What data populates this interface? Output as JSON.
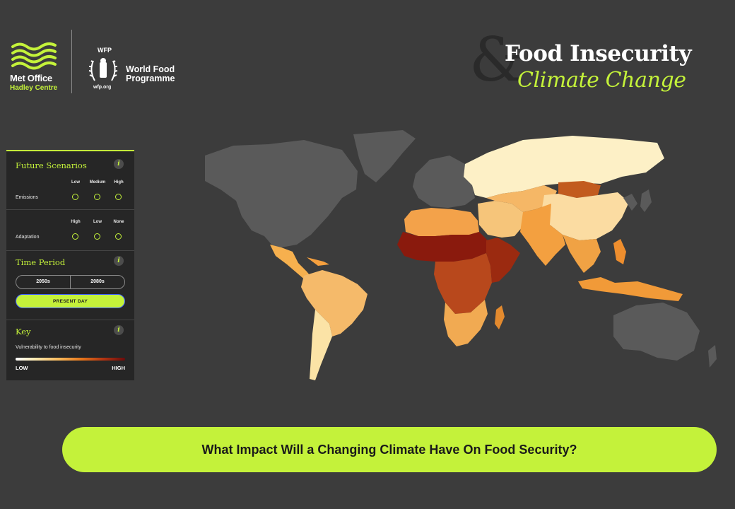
{
  "header": {
    "met_office": {
      "name": "Met Office",
      "subtitle": "Hadley Centre",
      "icon": "wave-lines-icon",
      "accent": "#c4f23a"
    },
    "wfp": {
      "acronym": "WFP",
      "name_line1": "World Food",
      "name_line2": "Programme",
      "url": "wfp.org",
      "icon": "wheat-wreath-emblem-icon"
    },
    "title": {
      "ampersand": "&",
      "line1": "Food Insecurity",
      "line2": "Climate Change"
    }
  },
  "panel": {
    "future_scenarios": {
      "title": "Future Scenarios",
      "info": "i",
      "emissions": {
        "label": "Emissions",
        "options": [
          "Low",
          "Medium",
          "High"
        ]
      },
      "adaptation": {
        "label": "Adaptation",
        "options": [
          "High",
          "Low",
          "None"
        ]
      }
    },
    "time_period": {
      "title": "Time Period",
      "info": "i",
      "options": [
        "2050s",
        "2080s"
      ],
      "present_label": "PRESENT DAY"
    },
    "key": {
      "title": "Key",
      "info": "i",
      "description": "Vulnerability to food insecurity",
      "low": "LOW",
      "high": "HIGH",
      "gradient": [
        "#ffffff",
        "#fde9b0",
        "#f8b85a",
        "#e5761c",
        "#b23512",
        "#6a0b0b"
      ]
    }
  },
  "map": {
    "no_data_color": "#5a5a5a",
    "ocean_color": "#3c3c3c",
    "regions": [
      {
        "name": "North America",
        "level": "no-data"
      },
      {
        "name": "Greenland",
        "level": "no-data"
      },
      {
        "name": "Europe",
        "level": "no-data"
      },
      {
        "name": "Australia",
        "level": "no-data"
      },
      {
        "name": "Russia",
        "level": "low"
      },
      {
        "name": "Central America",
        "level": "medium"
      },
      {
        "name": "South America",
        "level": "low-medium"
      },
      {
        "name": "Southern Cone",
        "level": "low"
      },
      {
        "name": "North Africa",
        "level": "medium"
      },
      {
        "name": "Sahel",
        "level": "high"
      },
      {
        "name": "Central Africa",
        "level": "high"
      },
      {
        "name": "East Africa",
        "level": "high"
      },
      {
        "name": "Southern Africa",
        "level": "medium"
      },
      {
        "name": "Middle East",
        "level": "low-medium"
      },
      {
        "name": "Central Asia",
        "level": "low-medium"
      },
      {
        "name": "Mongolia",
        "level": "medium-high"
      },
      {
        "name": "China",
        "level": "low"
      },
      {
        "name": "South Asia",
        "level": "medium"
      },
      {
        "name": "Southeast Asia",
        "level": "medium"
      }
    ]
  },
  "banner": {
    "text": "What Impact Will a Changing Climate Have On Food Security?"
  }
}
